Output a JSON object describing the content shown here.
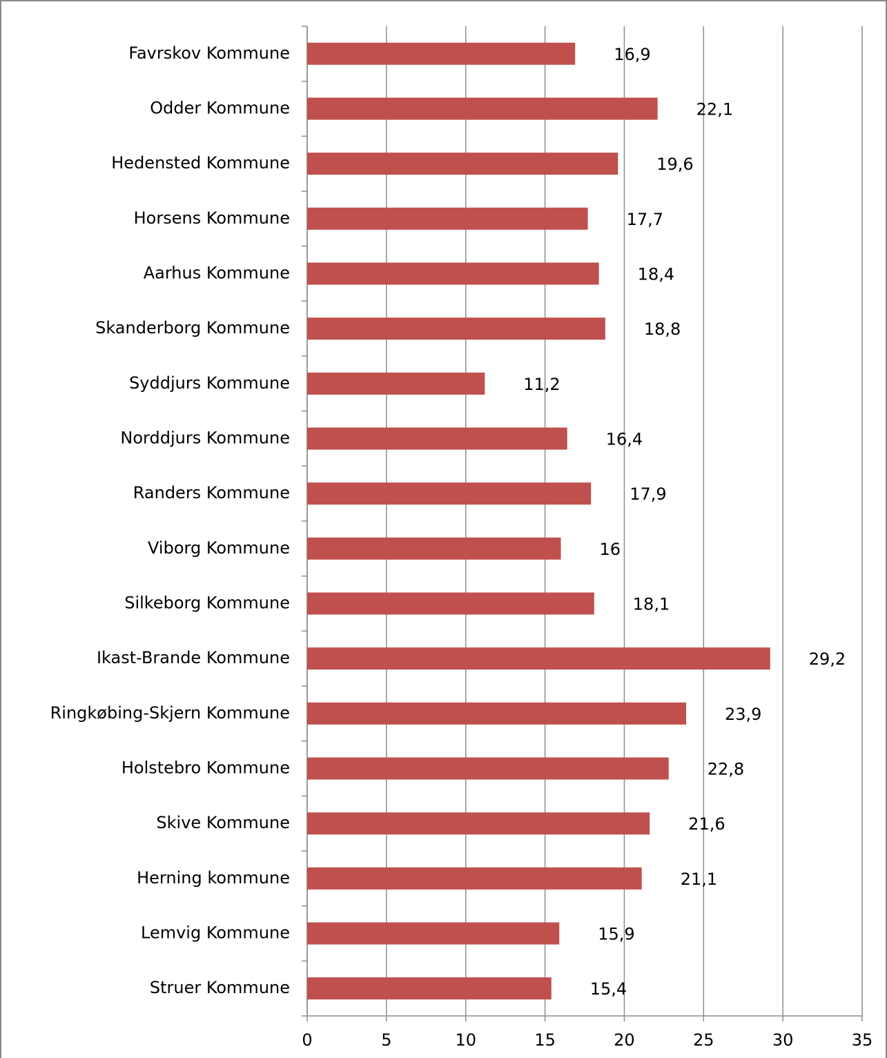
{
  "chart_data": {
    "type": "bar",
    "orientation": "horizontal",
    "categories": [
      "Favrskov Kommune",
      "Odder Kommune",
      "Hedensted Kommune",
      "Horsens Kommune",
      "Aarhus Kommune",
      "Skanderborg Kommune",
      "Syddjurs Kommune",
      "Norddjurs Kommune",
      "Randers Kommune",
      "Viborg Kommune",
      "Silkeborg Kommune",
      "Ikast-Brande Kommune",
      "Ringkøbing-Skjern Kommune",
      "Holstebro Kommune",
      "Skive Kommune",
      "Herning kommune",
      "Lemvig Kommune",
      "Struer Kommune"
    ],
    "values": [
      16.9,
      22.1,
      19.6,
      17.7,
      18.4,
      18.8,
      11.2,
      16.4,
      17.9,
      16,
      18.1,
      29.2,
      23.9,
      22.8,
      21.6,
      21.1,
      15.9,
      15.4
    ],
    "value_labels": [
      "16,9",
      "22,1",
      "19,6",
      "17,7",
      "18,4",
      "18,8",
      "11,2",
      "16,4",
      "17,9",
      "16",
      "18,1",
      "29,2",
      "23,9",
      "22,8",
      "21,6",
      "21,1",
      "15,9",
      "15,4"
    ],
    "color": "#c0504d",
    "xlim": [
      0,
      35
    ],
    "xticks": [
      0,
      5,
      10,
      15,
      20,
      25,
      30,
      35
    ],
    "grid": true
  }
}
